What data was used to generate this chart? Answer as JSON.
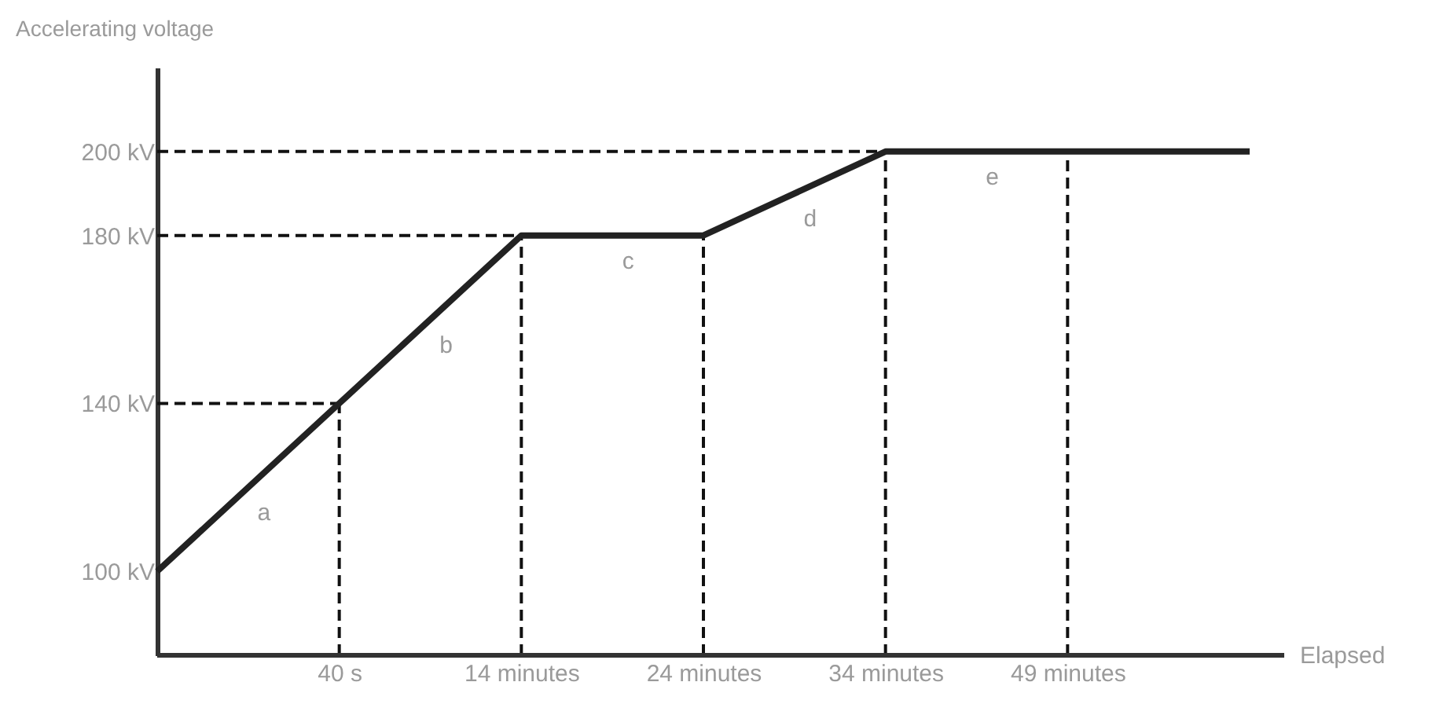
{
  "chart_data": {
    "type": "line",
    "xlabel": "Elapsed",
    "ylabel": "Accelerating voltage",
    "categories": [
      null,
      "40 s",
      "14 minutes",
      "24 minutes",
      "34 minutes",
      "49 minutes",
      null
    ],
    "series": [
      {
        "color": "#222222",
        "values": [
          100,
          140,
          180,
          180,
          200,
          200,
          200
        ]
      }
    ],
    "ylim": [
      80,
      220
    ],
    "yticks": [
      {
        "value": 100,
        "label": "100 kV"
      },
      {
        "value": 140,
        "label": "140 kV"
      },
      {
        "value": 180,
        "label": "180 kV"
      },
      {
        "value": 200,
        "label": "200 kV"
      }
    ],
    "ref_lines": [
      {
        "axis": "y",
        "value": 140,
        "color": "#111111",
        "line_style": "dashed"
      },
      {
        "axis": "y",
        "value": 180,
        "color": "#111111",
        "line_style": "dashed"
      },
      {
        "axis": "y",
        "value": 200,
        "color": "#111111",
        "line_style": "dashed"
      },
      {
        "axis": "x",
        "value": "40 s",
        "color": "#111111",
        "line_style": "dashed"
      },
      {
        "axis": "x",
        "value": "14 minutes",
        "color": "#111111",
        "line_style": "dashed"
      },
      {
        "axis": "x",
        "value": "24 minutes",
        "color": "#111111",
        "line_style": "dashed"
      },
      {
        "axis": "x",
        "value": "34 minutes",
        "color": "#111111",
        "line_style": "dashed"
      },
      {
        "axis": "x",
        "value": "49 minutes",
        "color": "#111111",
        "line_style": "dashed"
      }
    ],
    "annotations": [
      "a",
      "b",
      "c",
      "d",
      "e"
    ]
  }
}
